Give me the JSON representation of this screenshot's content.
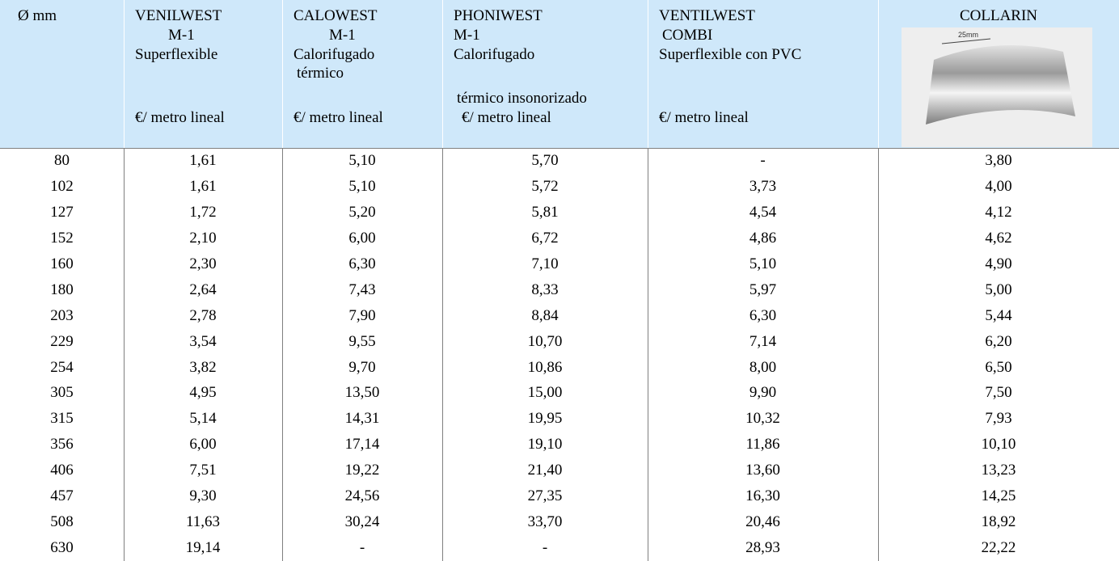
{
  "table": {
    "header": [
      {
        "lines": [
          "Ø mm"
        ]
      },
      {
        "lines": [
          "VENILWEST",
          "M-1",
          "Superflexible",
          "€/ metro lineal"
        ]
      },
      {
        "lines": [
          "CALOWEST",
          "M-1",
          "Calorifugado",
          "térmico",
          "€/ metro lineal"
        ]
      },
      {
        "lines": [
          "PHONIWEST",
          "M-1",
          "Calorifugado",
          "térmico insonorizado",
          "€/ metro lineal"
        ]
      },
      {
        "lines": [
          "VENTILWEST",
          "COMBI",
          "Superflexible con PVC",
          "€/ metro lineal"
        ]
      },
      {
        "lines": [
          "COLLARIN"
        ],
        "image_label": "25mm"
      }
    ],
    "rows": [
      [
        "80",
        "1,61",
        "5,10",
        "5,70",
        "-",
        "3,80"
      ],
      [
        "102",
        "1,61",
        "5,10",
        "5,72",
        "3,73",
        "4,00"
      ],
      [
        "127",
        "1,72",
        "5,20",
        "5,81",
        "4,54",
        "4,12"
      ],
      [
        "152",
        "2,10",
        "6,00",
        "6,72",
        "4,86",
        "4,62"
      ],
      [
        "160",
        "2,30",
        "6,30",
        "7,10",
        "5,10",
        "4,90"
      ],
      [
        "180",
        "2,64",
        "7,43",
        "8,33",
        "5,97",
        "5,00"
      ],
      [
        "203",
        "2,78",
        "7,90",
        "8,84",
        "6,30",
        "5,44"
      ],
      [
        "229",
        "3,54",
        "9,55",
        "10,70",
        "7,14",
        "6,20"
      ],
      [
        "254",
        "3,82",
        "9,70",
        "10,86",
        "8,00",
        "6,50"
      ],
      [
        "305",
        "4,95",
        "13,50",
        "15,00",
        "9,90",
        "7,50"
      ],
      [
        "315",
        "5,14",
        "14,31",
        "19,95",
        "10,32",
        "7,93"
      ],
      [
        "356",
        "6,00",
        "17,14",
        "19,10",
        "11,86",
        "10,10"
      ],
      [
        "406",
        "7,51",
        "19,22",
        "21,40",
        "13,60",
        "13,23"
      ],
      [
        "457",
        "9,30",
        "24,56",
        "27,35",
        "16,30",
        "14,25"
      ],
      [
        "508",
        "11,63",
        "30,24",
        "33,70",
        "20,46",
        "18,92"
      ],
      [
        "630",
        "19,14",
        "-",
        "-",
        "28,93",
        "22,22"
      ]
    ]
  }
}
